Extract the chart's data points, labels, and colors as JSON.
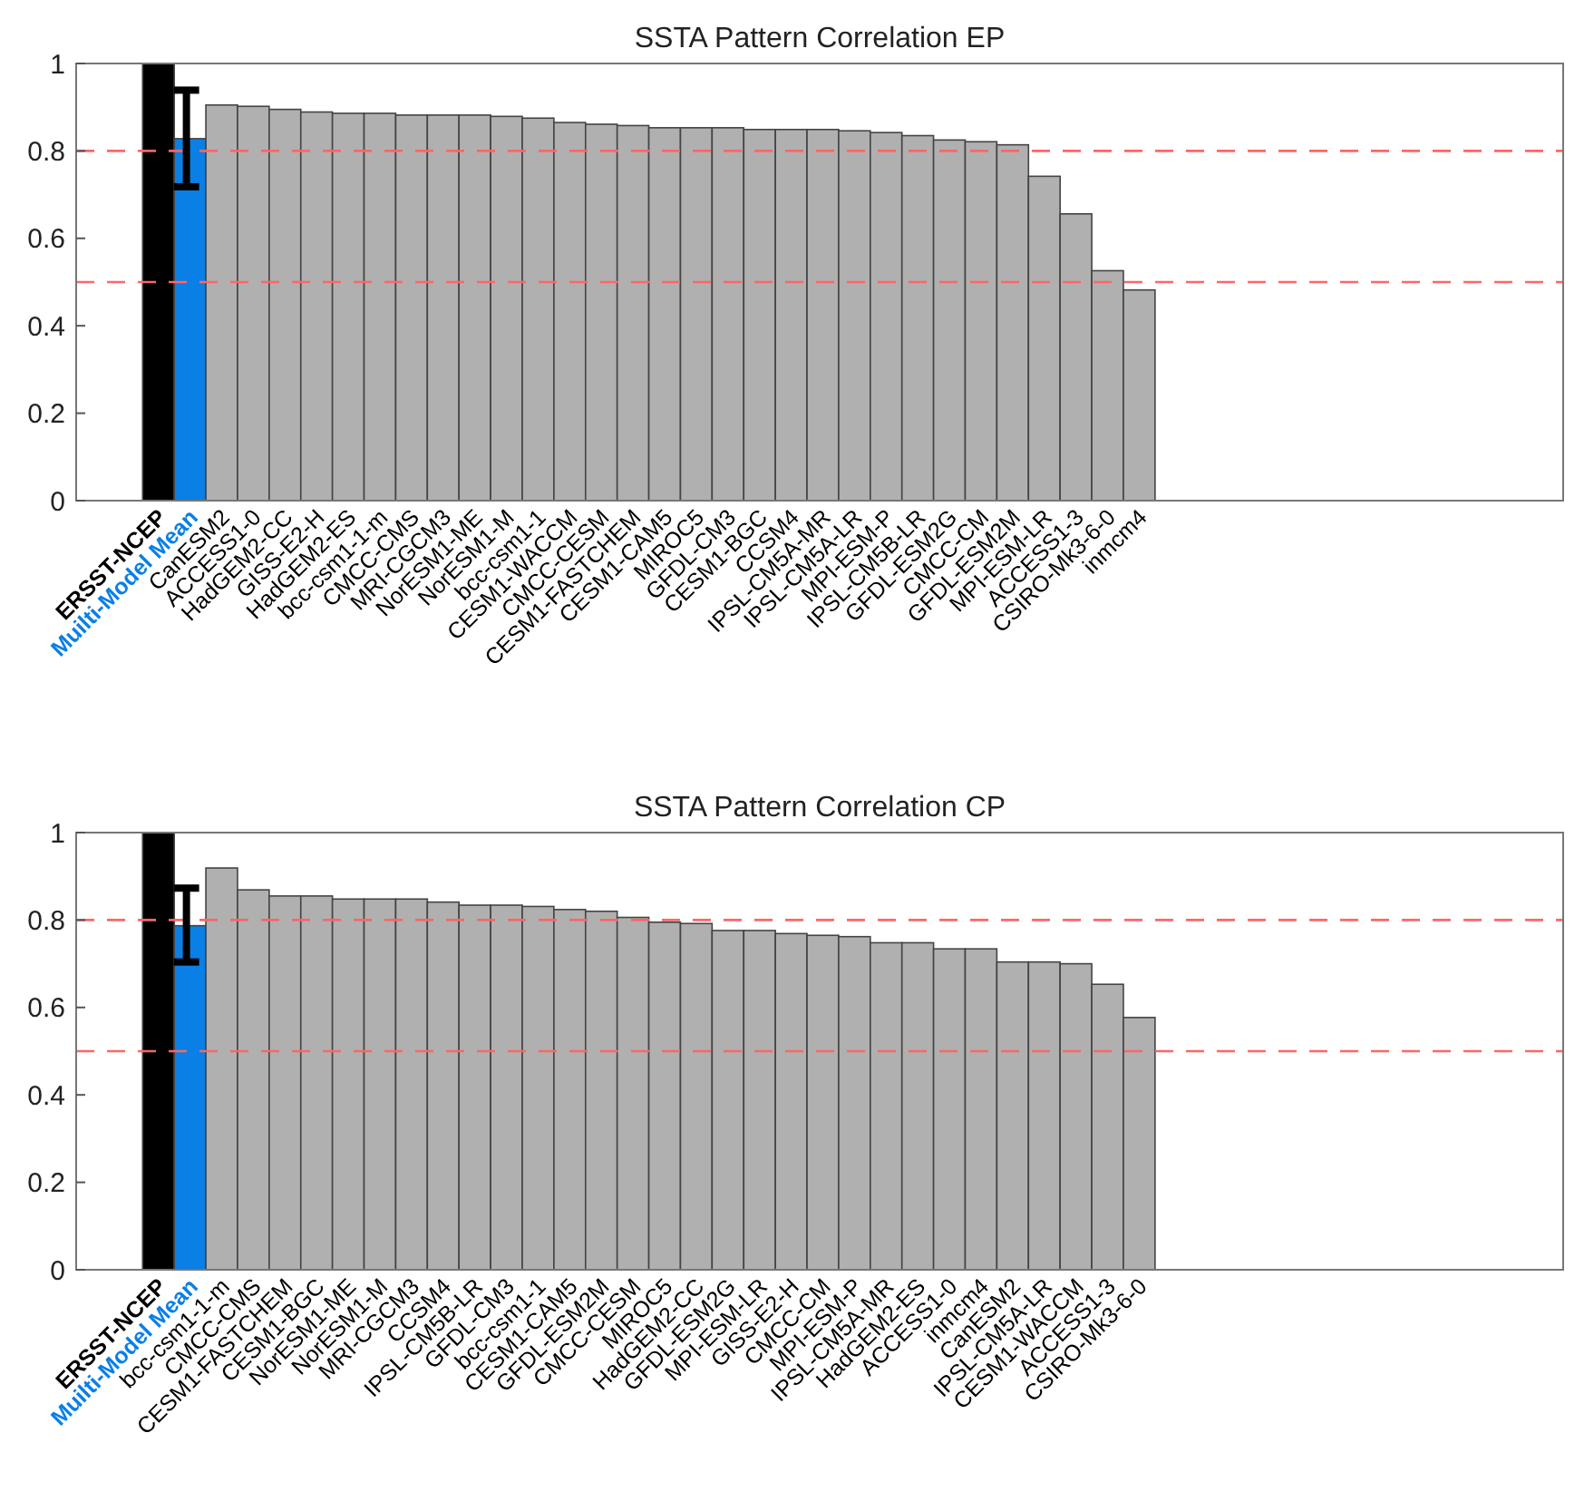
{
  "chart_data": [
    {
      "type": "bar",
      "title": "SSTA Pattern Correlation  EP",
      "categories": [
        "ERSST-NCEP",
        "Muilti-Model Mean",
        "CanESM2",
        "ACCESS1-0",
        "HadGEM2-CC",
        "GISS-E2-H",
        "HadGEM2-ES",
        "bcc-csm1-1-m",
        "CMCC-CMS",
        "MRI-CGCM3",
        "NorESM1-ME",
        "NorESM1-M",
        "bcc-csm1-1",
        "CESM1-WACCM",
        "CMCC-CESM",
        "CESM1-FASTCHEM",
        "CESM1-CAM5",
        "MIROC5",
        "GFDL-CM3",
        "CESM1-BGC",
        "CCSM4",
        "IPSL-CM5A-MR",
        "IPSL-CM5A-LR",
        "MPI-ESM-P",
        "IPSL-CM5B-LR",
        "GFDL-ESM2G",
        "CMCC-CM",
        "GFDL-ESM2M",
        "MPI-ESM-LR",
        "ACCESS1-3",
        "CSIRO-Mk3-6-0",
        "inmcm4"
      ],
      "values": [
        1,
        0.828,
        0.905,
        0.902,
        0.895,
        0.889,
        0.886,
        0.886,
        0.882,
        0.882,
        0.882,
        0.879,
        0.875,
        0.865,
        0.861,
        0.858,
        0.853,
        0.853,
        0.853,
        0.849,
        0.849,
        0.849,
        0.846,
        0.842,
        0.835,
        0.825,
        0.821,
        0.814,
        0.742,
        0.656,
        0.526,
        0.482
      ],
      "colors": [
        "#000000",
        "#0a7fe6",
        "#b0b0b0",
        "#b0b0b0",
        "#b0b0b0",
        "#b0b0b0",
        "#b0b0b0",
        "#b0b0b0",
        "#b0b0b0",
        "#b0b0b0",
        "#b0b0b0",
        "#b0b0b0",
        "#b0b0b0",
        "#b0b0b0",
        "#b0b0b0",
        "#b0b0b0",
        "#b0b0b0",
        "#b0b0b0",
        "#b0b0b0",
        "#b0b0b0",
        "#b0b0b0",
        "#b0b0b0",
        "#b0b0b0",
        "#b0b0b0",
        "#b0b0b0",
        "#b0b0b0",
        "#b0b0b0",
        "#b0b0b0",
        "#b0b0b0",
        "#b0b0b0",
        "#b0b0b0",
        "#b0b0b0"
      ],
      "errors": [
        null,
        [
          0.718,
          0.939
        ],
        null,
        null,
        null,
        null,
        null,
        null,
        null,
        null,
        null,
        null,
        null,
        null,
        null,
        null,
        null,
        null,
        null,
        null,
        null,
        null,
        null,
        null,
        null,
        null,
        null,
        null,
        null,
        null,
        null,
        null
      ],
      "ylim": [
        0,
        1
      ],
      "yticks": [
        0,
        0.2,
        0.4,
        0.6,
        0.8,
        1
      ],
      "grid": false,
      "ref_lines": [
        {
          "axis": "y",
          "value": 0.8,
          "color": "#ff6666",
          "line_style": "dashed"
        },
        {
          "axis": "y",
          "value": 0.5,
          "color": "#ff6666",
          "line_style": "dashed"
        }
      ]
    },
    {
      "type": "bar",
      "title": "SSTA Pattern Correlation  CP",
      "categories": [
        "ERSST-NCEP",
        "Muilti-Model Mean",
        "bcc-csm1-1-m",
        "CMCC-CMS",
        "CESM1-FASTCHEM",
        "CESM1-BGC",
        "NorESM1-ME",
        "NorESM1-M",
        "MRI-CGCM3",
        "CCSM4",
        "IPSL-CM5B-LR",
        "GFDL-CM3",
        "bcc-csm1-1",
        "CESM1-CAM5",
        "GFDL-ESM2M",
        "CMCC-CESM",
        "MIROC5",
        "HadGEM2-CC",
        "GFDL-ESM2G",
        "MPI-ESM-LR",
        "GISS-E2-H",
        "CMCC-CM",
        "MPI-ESM-P",
        "IPSL-CM5A-MR",
        "HadGEM2-ES",
        "ACCESS1-0",
        "inmcm4",
        "CanESM2",
        "IPSL-CM5A-LR",
        "CESM1-WACCM",
        "ACCESS1-3",
        "CSIRO-Mk3-6-0"
      ],
      "values": [
        1,
        0.787,
        0.919,
        0.869,
        0.855,
        0.855,
        0.848,
        0.848,
        0.848,
        0.841,
        0.834,
        0.834,
        0.831,
        0.824,
        0.82,
        0.806,
        0.795,
        0.792,
        0.776,
        0.776,
        0.769,
        0.765,
        0.762,
        0.748,
        0.748,
        0.734,
        0.734,
        0.704,
        0.704,
        0.7,
        0.653,
        0.577
      ],
      "colors": [
        "#000000",
        "#0a7fe6",
        "#b0b0b0",
        "#b0b0b0",
        "#b0b0b0",
        "#b0b0b0",
        "#b0b0b0",
        "#b0b0b0",
        "#b0b0b0",
        "#b0b0b0",
        "#b0b0b0",
        "#b0b0b0",
        "#b0b0b0",
        "#b0b0b0",
        "#b0b0b0",
        "#b0b0b0",
        "#b0b0b0",
        "#b0b0b0",
        "#b0b0b0",
        "#b0b0b0",
        "#b0b0b0",
        "#b0b0b0",
        "#b0b0b0",
        "#b0b0b0",
        "#b0b0b0",
        "#b0b0b0",
        "#b0b0b0",
        "#b0b0b0",
        "#b0b0b0",
        "#b0b0b0",
        "#b0b0b0",
        "#b0b0b0"
      ],
      "errors": [
        null,
        [
          0.704,
          0.873
        ],
        null,
        null,
        null,
        null,
        null,
        null,
        null,
        null,
        null,
        null,
        null,
        null,
        null,
        null,
        null,
        null,
        null,
        null,
        null,
        null,
        null,
        null,
        null,
        null,
        null,
        null,
        null,
        null,
        null,
        null
      ],
      "ylim": [
        0,
        1
      ],
      "yticks": [
        0,
        0.2,
        0.4,
        0.6,
        0.8,
        1
      ],
      "grid": false,
      "ref_lines": [
        {
          "axis": "y",
          "value": 0.8,
          "color": "#ff6666",
          "line_style": "dashed"
        },
        {
          "axis": "y",
          "value": 0.5,
          "color": "#ff6666",
          "line_style": "dashed"
        }
      ]
    }
  ]
}
